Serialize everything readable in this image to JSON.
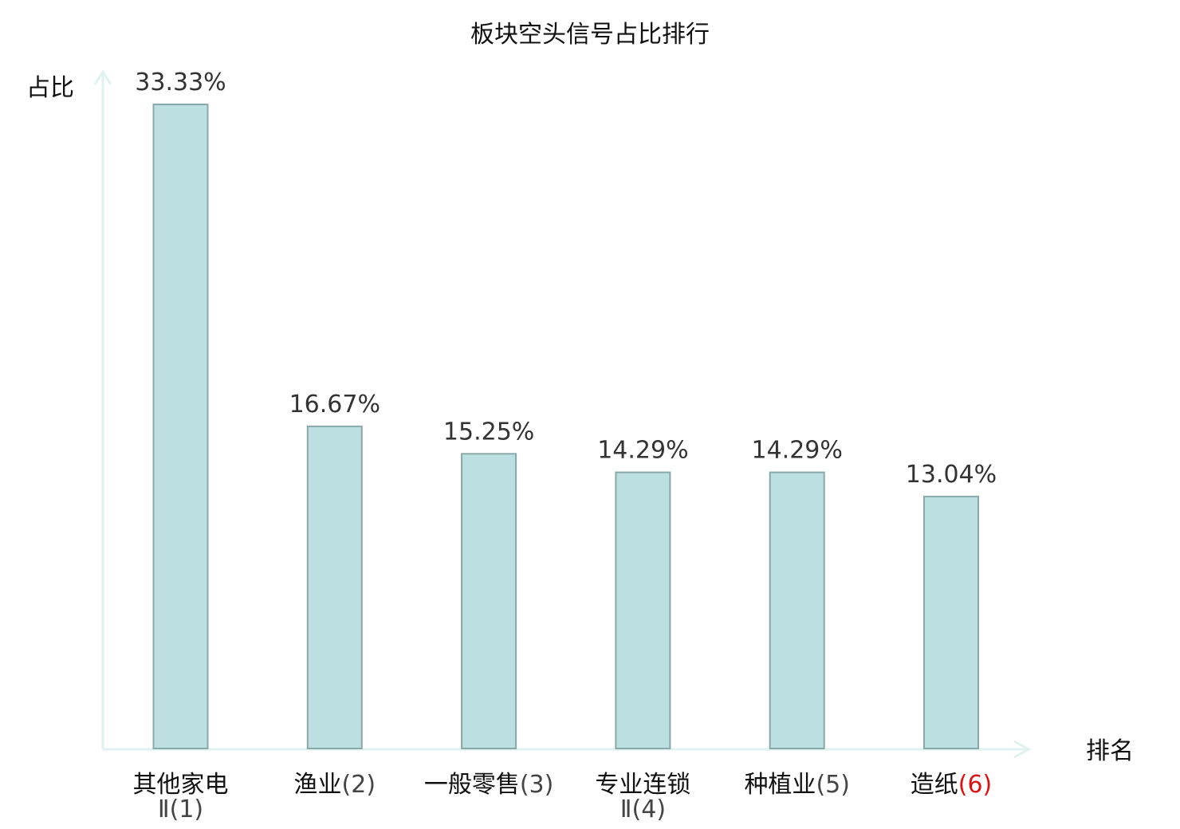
{
  "chart_data": {
    "type": "bar",
    "title": "板块空头信号占比排行",
    "xlabel": "排名",
    "ylabel": "占比",
    "categories": [
      {
        "name": "其他家电",
        "rank": "Ⅱ(1)"
      },
      {
        "name": "渔业",
        "rank": "(2)"
      },
      {
        "name": "一般零售",
        "rank": "(3)"
      },
      {
        "name": "专业连锁",
        "rank": "Ⅱ(4)"
      },
      {
        "name": "种植业",
        "rank": "(5)"
      },
      {
        "name": "造纸",
        "rank": "(6)"
      }
    ],
    "values": [
      33.33,
      16.67,
      15.25,
      14.29,
      14.29,
      13.04
    ],
    "value_labels": [
      "33.33%",
      "16.67%",
      "15.25%",
      "14.29%",
      "14.29%",
      "13.04%"
    ],
    "highlight_index": 5,
    "ylim": [
      0,
      33.33
    ],
    "grid": false,
    "legend": "none",
    "colors": {
      "bar_fill": "#bce0e2",
      "bar_stroke": "#88a8a9",
      "axis": "#e0f2ef",
      "highlight_text": "#dd1111",
      "normal_text": "#111111",
      "value_text": "#333333"
    }
  }
}
